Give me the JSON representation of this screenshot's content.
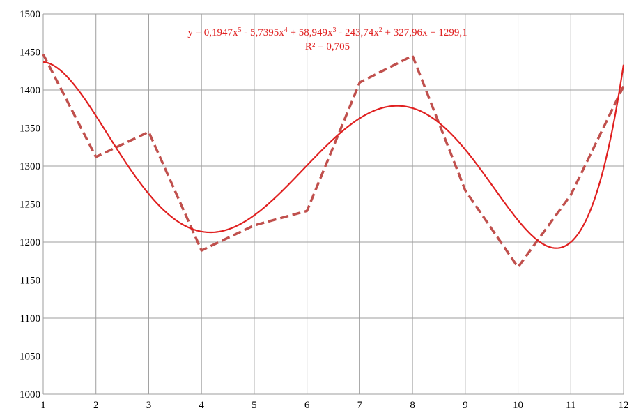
{
  "chart_data": {
    "type": "line",
    "title": "",
    "xlabel": "",
    "ylabel": "",
    "x": [
      1,
      2,
      3,
      4,
      5,
      6,
      7,
      8,
      9,
      10,
      11,
      12
    ],
    "xlim": [
      1,
      12
    ],
    "ylim": [
      1000,
      1500
    ],
    "x_ticks": [
      "1",
      "2",
      "3",
      "4",
      "5",
      "6",
      "7",
      "8",
      "9",
      "10",
      "11",
      "12"
    ],
    "y_ticks": [
      "1000",
      "1050",
      "1100",
      "1150",
      "1200",
      "1250",
      "1300",
      "1350",
      "1400",
      "1450",
      "1500"
    ],
    "grid": true,
    "legend": "none",
    "series": [
      {
        "style": "dashed",
        "color": "#c0504d",
        "values": [
          1447,
          1312,
          1345,
          1189,
          1222,
          1241,
          1410,
          1445,
          1268,
          1167,
          1262,
          1405
        ]
      }
    ],
    "trendline": {
      "type": "polynomial",
      "order": 5,
      "color": "#e02020",
      "coefficients": [
        0.1947,
        -5.7395,
        58.949,
        -243.74,
        327.96,
        1299.1
      ],
      "equation_parts": [
        {
          "t": "y = 0,1947x",
          "sup": false
        },
        {
          "t": "5",
          "sup": true
        },
        {
          "t": " - 5,7395x",
          "sup": false
        },
        {
          "t": "4",
          "sup": true
        },
        {
          "t": " + 58,949x",
          "sup": false
        },
        {
          "t": "3",
          "sup": true
        },
        {
          "t": " - 243,74x",
          "sup": false
        },
        {
          "t": "2",
          "sup": true
        },
        {
          "t": " + 327,96x + 1299,1",
          "sup": false
        }
      ],
      "r_squared_label": "R² = 0,705"
    }
  }
}
